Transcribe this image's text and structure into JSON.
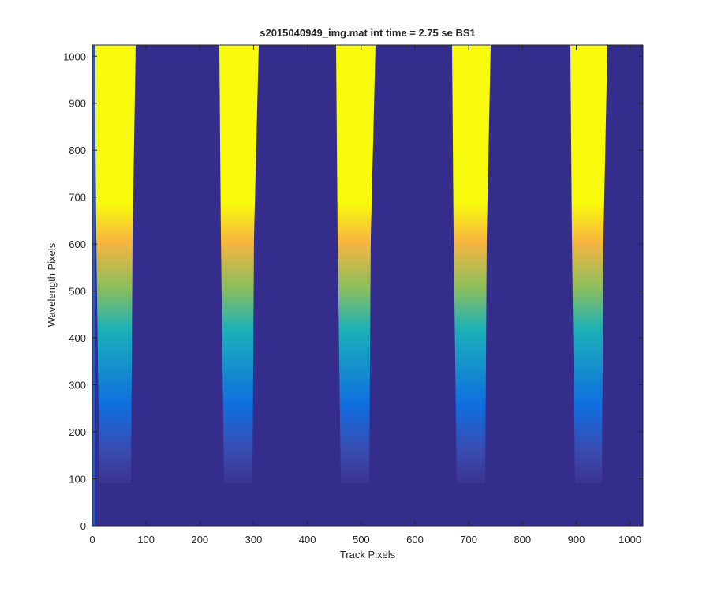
{
  "chart_data": {
    "type": "heatmap",
    "title": "s2015040949_img.mat int time = 2.75 se   BS1",
    "xlabel": "Track Pixels",
    "ylabel": "Wavelength Pixels",
    "xlim": [
      0,
      1024
    ],
    "ylim": [
      0,
      1024
    ],
    "xticks": [
      0,
      100,
      200,
      300,
      400,
      500,
      600,
      700,
      800,
      900,
      1000
    ],
    "yticks": [
      0,
      100,
      200,
      300,
      400,
      500,
      600,
      700,
      800,
      900,
      1000
    ]
  }
}
